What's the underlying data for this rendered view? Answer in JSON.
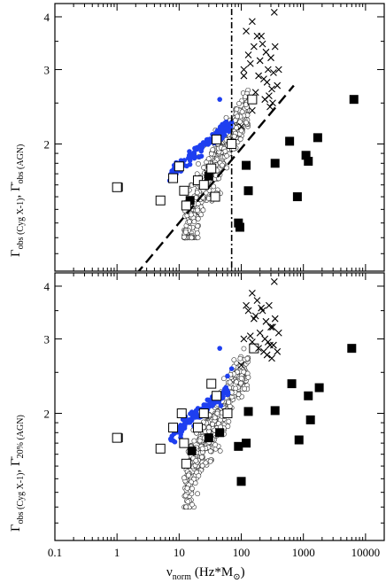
{
  "chart_data": [
    {
      "type": "scatter",
      "panel": "top",
      "xscale": "log",
      "yscale": "log",
      "xlim": [
        0.1,
        20000
      ],
      "ylim": [
        1.0,
        4.3
      ],
      "yticks": [
        2,
        3,
        4
      ],
      "ylabel_main": "Γ",
      "ylabel_sub1": "obs (Cyg X-1)",
      "ylabel_sep": ", ",
      "ylabel_main2": "Γ̄",
      "ylabel_sub2": "obs (AGN)",
      "vertical_line_x": 70,
      "dashed_line": {
        "x": [
          2,
          700
        ],
        "y": [
          0.98,
          2.75
        ]
      },
      "series": [
        {
          "marker": "filled-square",
          "points": [
            [
              120,
              1.78
            ],
            [
              130,
              1.55
            ],
            [
              90,
              1.3
            ],
            [
              95,
              1.27
            ],
            [
              350,
              1.8
            ],
            [
              600,
              2.03
            ],
            [
              1100,
              1.88
            ],
            [
              1200,
              1.82
            ],
            [
              1700,
              2.07
            ],
            [
              800,
              1.5
            ],
            [
              6500,
              2.55
            ],
            [
              1.05,
              1.58
            ],
            [
              15,
              1.47
            ],
            [
              30,
              1.68
            ]
          ]
        },
        {
          "marker": "open-square",
          "points": [
            [
              1,
              1.58
            ],
            [
              5,
              1.47
            ],
            [
              8,
              1.66
            ],
            [
              12,
              1.55
            ],
            [
              13,
              1.43
            ],
            [
              10,
              1.77
            ],
            [
              20,
              1.64
            ],
            [
              25,
              1.6
            ],
            [
              33,
              1.75
            ],
            [
              38,
              1.5
            ],
            [
              40,
              2.05
            ],
            [
              150,
              2.55
            ],
            [
              70,
              2.0
            ]
          ]
        },
        {
          "marker": "cross",
          "points": [
            [
              340,
              4.1
            ],
            [
              150,
              3.9
            ],
            [
              120,
              3.7
            ],
            [
              180,
              3.6
            ],
            [
              220,
              3.45
            ],
            [
              160,
              3.4
            ],
            [
              250,
              3.3
            ],
            [
              300,
              3.2
            ],
            [
              200,
              3.15
            ],
            [
              140,
              3.1
            ],
            [
              110,
              3.0
            ],
            [
              270,
              3.0
            ],
            [
              330,
              2.95
            ],
            [
              190,
              2.9
            ],
            [
              230,
              2.85
            ],
            [
              260,
              2.8
            ],
            [
              310,
              2.7
            ],
            [
              170,
              2.65
            ],
            [
              280,
              2.6
            ],
            [
              240,
              2.55
            ],
            [
              320,
              2.5
            ],
            [
              290,
              2.45
            ],
            [
              150,
              2.4
            ],
            [
              100,
              2.2
            ],
            [
              130,
              3.25
            ],
            [
              210,
              3.6
            ],
            [
              350,
              3.4
            ],
            [
              400,
              3.0
            ],
            [
              380,
              2.75
            ],
            [
              110,
              2.9
            ]
          ]
        }
      ]
    },
    {
      "type": "scatter",
      "panel": "bottom",
      "xscale": "log",
      "yscale": "log",
      "xlim": [
        0.1,
        20000
      ],
      "ylim": [
        1.0,
        4.3
      ],
      "yticks": [
        2,
        3,
        4
      ],
      "xticks": [
        "0.1",
        "1",
        "10",
        "100",
        "1000",
        "10000"
      ],
      "xlabel_main": "ν",
      "xlabel_sub": "norm",
      "xlabel_units": "(Hz*M",
      "xlabel_units_sub": "⊙",
      "xlabel_units_end": ")",
      "ylabel_main": "Γ",
      "ylabel_sub1": "obs (Cyg X-1)",
      "ylabel_sep": ", ",
      "ylabel_main2": "Γ̄",
      "ylabel_sub2": "20% (AGN)",
      "series": [
        {
          "marker": "filled-square",
          "points": [
            [
              130,
              2.02
            ],
            [
              120,
              1.7
            ],
            [
              90,
              1.67
            ],
            [
              100,
              1.38
            ],
            [
              350,
              2.03
            ],
            [
              650,
              2.35
            ],
            [
              1200,
              2.2
            ],
            [
              1300,
              1.93
            ],
            [
              1800,
              2.3
            ],
            [
              850,
              1.73
            ],
            [
              6000,
              2.85
            ],
            [
              1.05,
              1.75
            ],
            [
              16,
              1.63
            ],
            [
              30,
              1.75
            ],
            [
              45,
              1.8
            ]
          ]
        },
        {
          "marker": "open-square",
          "points": [
            [
              1,
              1.75
            ],
            [
              5,
              1.65
            ],
            [
              8,
              1.85
            ],
            [
              12,
              1.7
            ],
            [
              13,
              1.52
            ],
            [
              11,
              2.0
            ],
            [
              20,
              1.85
            ],
            [
              25,
              2.0
            ],
            [
              33,
              2.35
            ],
            [
              40,
              2.2
            ],
            [
              160,
              2.85
            ],
            [
              60,
              2.0
            ]
          ]
        },
        {
          "marker": "cross",
          "points": [
            [
              340,
              4.1
            ],
            [
              150,
              3.85
            ],
            [
              120,
              3.6
            ],
            [
              180,
              3.7
            ],
            [
              220,
              3.5
            ],
            [
              160,
              3.35
            ],
            [
              250,
              3.3
            ],
            [
              300,
              3.2
            ],
            [
              200,
              3.1
            ],
            [
              140,
              3.05
            ],
            [
              110,
              3.0
            ],
            [
              270,
              2.95
            ],
            [
              330,
              2.9
            ],
            [
              190,
              2.85
            ],
            [
              230,
              2.8
            ],
            [
              260,
              2.75
            ],
            [
              310,
              2.7
            ],
            [
              170,
              3.4
            ],
            [
              280,
              3.6
            ],
            [
              240,
              3.0
            ],
            [
              320,
              3.2
            ],
            [
              290,
              2.9
            ],
            [
              150,
              2.95
            ],
            [
              100,
              2.6
            ],
            [
              130,
              3.5
            ],
            [
              210,
              3.55
            ],
            [
              350,
              3.35
            ],
            [
              400,
              3.1
            ],
            [
              380,
              2.8
            ]
          ]
        }
      ]
    }
  ]
}
